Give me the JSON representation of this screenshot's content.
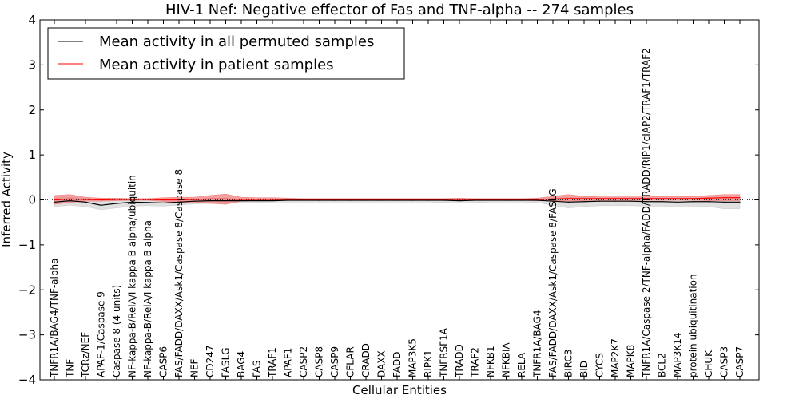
{
  "chart_data": {
    "type": "line",
    "title": "HIV-1 Nef: Negative effector of Fas and TNF-alpha -- 274 samples",
    "xlabel": "Cellular Entities",
    "ylabel": "Inferred Activity",
    "ylim": [
      -4,
      4
    ],
    "yticks": [
      -4,
      -3,
      -2,
      -1,
      0,
      1,
      2,
      3,
      4
    ],
    "ytick_labels": [
      "−4",
      "−3",
      "−2",
      "−1",
      "0",
      "1",
      "2",
      "3",
      "4"
    ],
    "categories": [
      "TNFR1A/BAG4/TNF-alpha",
      "TNF",
      "TCRz/NEF",
      "APAF-1/Caspase 9",
      "Caspase 8 (4 units)",
      "NF-kappa-B/RelA/I kappa B alpha/ubiquitin",
      "NF-kappa-B/RelA/I kappa B alpha",
      "CASP6",
      "FAS/FADD/DAXX/Ask1/Caspase 8/Caspase 8",
      "NEF",
      "CD247",
      "FASLG",
      "BAG4",
      "FAS",
      "TRAF1",
      "APAF1",
      "CASP2",
      "CASP8",
      "CASP9",
      "CFLAR",
      "CRADD",
      "DAXX",
      "FADD",
      "MAP3K5",
      "RIPK1",
      "TNFRSF1A",
      "TRADD",
      "TRAF2",
      "NFKB1",
      "NFKBIA",
      "RELA",
      "TNFR1A/BAG4",
      "FAS/FADD/DAXX/Ask1/Caspase 8/FASLG",
      "BIRC3",
      "BID",
      "CYCS",
      "MAP2K7",
      "MAPK8",
      "TNFR1A/Caspase 2/TNF-alpha/FADD/TRADD/RIP1/cIAP2/TRAF1/TRAF2",
      "BCL2",
      "MAP3K14",
      "protein ubiquitination",
      "CHUK",
      "CASP3",
      "CASP7"
    ],
    "series": [
      {
        "name": "Mean activity in all permuted samples",
        "color": "#000000",
        "band_color": "#cccccc",
        "values": [
          -0.05,
          -0.02,
          -0.05,
          -0.12,
          -0.08,
          -0.05,
          -0.06,
          -0.07,
          -0.05,
          -0.03,
          -0.02,
          -0.02,
          -0.02,
          -0.02,
          -0.02,
          -0.01,
          -0.01,
          -0.01,
          -0.01,
          -0.01,
          -0.01,
          -0.01,
          -0.01,
          -0.01,
          -0.01,
          -0.01,
          -0.02,
          -0.01,
          -0.01,
          -0.01,
          -0.01,
          -0.01,
          -0.03,
          -0.05,
          -0.04,
          -0.03,
          -0.03,
          -0.03,
          -0.04,
          -0.04,
          -0.05,
          -0.04,
          -0.04,
          -0.05,
          -0.05
        ],
        "band_lower": [
          -0.15,
          -0.12,
          -0.15,
          -0.22,
          -0.18,
          -0.14,
          -0.13,
          -0.14,
          -0.12,
          -0.09,
          -0.08,
          -0.07,
          -0.06,
          -0.06,
          -0.05,
          -0.05,
          -0.05,
          -0.05,
          -0.05,
          -0.05,
          -0.05,
          -0.05,
          -0.05,
          -0.05,
          -0.05,
          -0.06,
          -0.07,
          -0.06,
          -0.05,
          -0.05,
          -0.05,
          -0.06,
          -0.12,
          -0.18,
          -0.15,
          -0.13,
          -0.13,
          -0.13,
          -0.14,
          -0.14,
          -0.16,
          -0.15,
          -0.15,
          -0.2,
          -0.2
        ],
        "band_upper": [
          0.05,
          0.06,
          0.04,
          0.0,
          0.01,
          0.03,
          0.02,
          0.01,
          0.02,
          0.03,
          0.03,
          0.03,
          0.03,
          0.02,
          0.02,
          0.02,
          0.02,
          0.02,
          0.02,
          0.02,
          0.02,
          0.02,
          0.02,
          0.02,
          0.02,
          0.02,
          0.02,
          0.02,
          0.02,
          0.02,
          0.02,
          0.02,
          0.03,
          0.06,
          0.05,
          0.04,
          0.04,
          0.04,
          0.04,
          0.04,
          0.04,
          0.04,
          0.04,
          0.06,
          0.06
        ]
      },
      {
        "name": "Mean activity in patient samples",
        "color": "#ff0000",
        "band_color": "#f08080",
        "values": [
          0.0,
          0.02,
          0.01,
          0.0,
          0.01,
          0.01,
          0.01,
          0.0,
          0.0,
          0.01,
          0.02,
          0.02,
          0.01,
          0.01,
          0.01,
          0.01,
          0.01,
          0.01,
          0.01,
          0.01,
          0.01,
          0.01,
          0.01,
          0.01,
          0.01,
          0.01,
          0.01,
          0.01,
          0.01,
          0.01,
          0.01,
          0.01,
          0.02,
          0.03,
          0.03,
          0.03,
          0.03,
          0.03,
          0.03,
          0.03,
          0.03,
          0.03,
          0.04,
          0.05,
          0.05
        ],
        "band_lower": [
          -0.1,
          -0.06,
          -0.03,
          -0.03,
          -0.02,
          -0.01,
          -0.01,
          -0.04,
          -0.06,
          -0.05,
          -0.08,
          -0.1,
          -0.03,
          -0.02,
          -0.01,
          -0.01,
          -0.01,
          -0.01,
          -0.01,
          -0.01,
          -0.01,
          -0.01,
          -0.01,
          -0.01,
          -0.01,
          -0.01,
          -0.02,
          -0.01,
          -0.01,
          -0.01,
          -0.01,
          -0.02,
          -0.02,
          -0.03,
          -0.02,
          -0.01,
          -0.01,
          -0.01,
          -0.01,
          -0.01,
          -0.01,
          -0.01,
          -0.02,
          -0.02,
          -0.02
        ],
        "band_upper": [
          0.1,
          0.12,
          0.06,
          0.04,
          0.04,
          0.03,
          0.03,
          0.05,
          0.06,
          0.06,
          0.1,
          0.13,
          0.06,
          0.05,
          0.05,
          0.04,
          0.03,
          0.03,
          0.03,
          0.03,
          0.03,
          0.03,
          0.03,
          0.03,
          0.03,
          0.03,
          0.04,
          0.03,
          0.03,
          0.03,
          0.03,
          0.04,
          0.08,
          0.12,
          0.08,
          0.07,
          0.07,
          0.07,
          0.07,
          0.08,
          0.08,
          0.08,
          0.1,
          0.12,
          0.12
        ]
      }
    ],
    "legend_position": "top-left",
    "reference_line": 0
  }
}
